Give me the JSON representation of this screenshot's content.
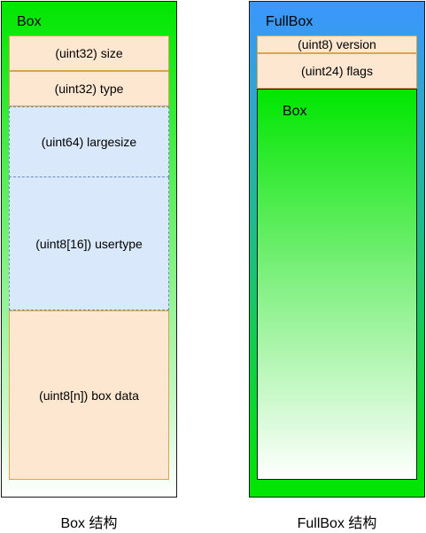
{
  "box": {
    "title": "Box",
    "fields": {
      "size": "(uint32) size",
      "type": "(uint32) type",
      "largesize": "(uint64) largesize",
      "usertype": "(uint8[16]) usertype",
      "box_data": "(uint8[n]) box data"
    },
    "caption": "Box 结构"
  },
  "fullbox": {
    "title": "FullBox",
    "fields": {
      "version": "(uint8) version",
      "flags": "(uint24) flags"
    },
    "inner_box_label": "Box",
    "caption": "FullBox 结构"
  },
  "colors": {
    "box_green": "#00e600",
    "fullbox_blue": "#3b96ff",
    "field_orange_fill": "#fde7d1",
    "field_orange_border": "#d9a54a",
    "field_blue_fill": "#dae8fb",
    "field_blue_border": "#6c8ebf"
  }
}
